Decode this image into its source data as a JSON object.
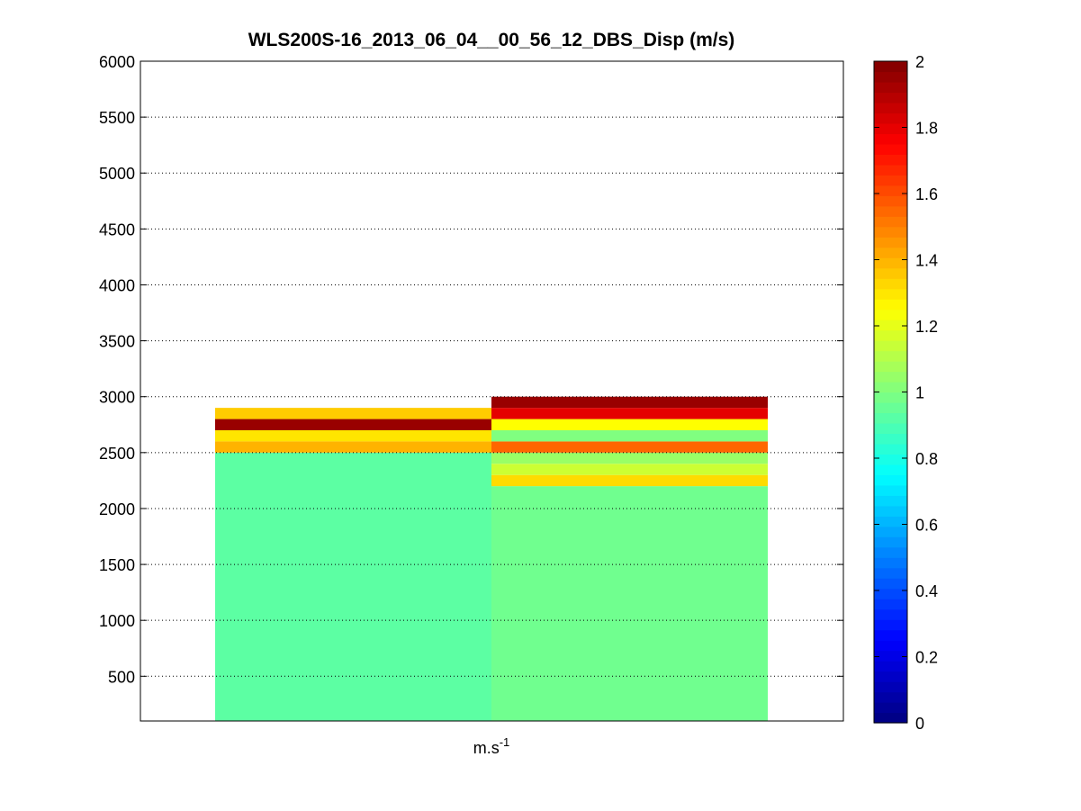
{
  "chart_data": {
    "type": "heatmap",
    "title": "WLS200S-16_2013_06_04__00_56_12_DBS_Disp (m/s)",
    "xlabel": "m.s",
    "xlabel_superscript": "-1",
    "ylabel": "",
    "ylim": [
      100,
      6000
    ],
    "yticks": [
      "500",
      "1000",
      "1500",
      "2000",
      "2500",
      "3000",
      "3500",
      "4000",
      "4500",
      "5000",
      "5500",
      "6000"
    ],
    "grid": true,
    "colormap": "jet",
    "colorbar": {
      "range": [
        0,
        2
      ],
      "ticks": [
        "0",
        "0.2",
        "0.4",
        "0.6",
        "0.8",
        "1",
        "1.2",
        "1.4",
        "1.6",
        "1.8",
        "2"
      ]
    },
    "columns": [
      {
        "cells": [
          {
            "y0": 100,
            "y1": 2500,
            "value": 0.93
          },
          {
            "y0": 2500,
            "y1": 2600,
            "value": 1.4
          },
          {
            "y0": 2600,
            "y1": 2700,
            "value": 1.3
          },
          {
            "y0": 2700,
            "y1": 2800,
            "value": 1.95
          },
          {
            "y0": 2800,
            "y1": 2900,
            "value": 1.35
          }
        ]
      },
      {
        "cells": [
          {
            "y0": 100,
            "y1": 2200,
            "value": 0.97
          },
          {
            "y0": 2200,
            "y1": 2300,
            "value": 1.32
          },
          {
            "y0": 2300,
            "y1": 2400,
            "value": 1.15
          },
          {
            "y0": 2400,
            "y1": 2500,
            "value": 1.05
          },
          {
            "y0": 2500,
            "y1": 2600,
            "value": 1.55
          },
          {
            "y0": 2600,
            "y1": 2700,
            "value": 1.0
          },
          {
            "y0": 2700,
            "y1": 2800,
            "value": 1.25
          },
          {
            "y0": 2800,
            "y1": 2900,
            "value": 1.8
          },
          {
            "y0": 2900,
            "y1": 3000,
            "value": 1.95
          }
        ]
      }
    ]
  }
}
